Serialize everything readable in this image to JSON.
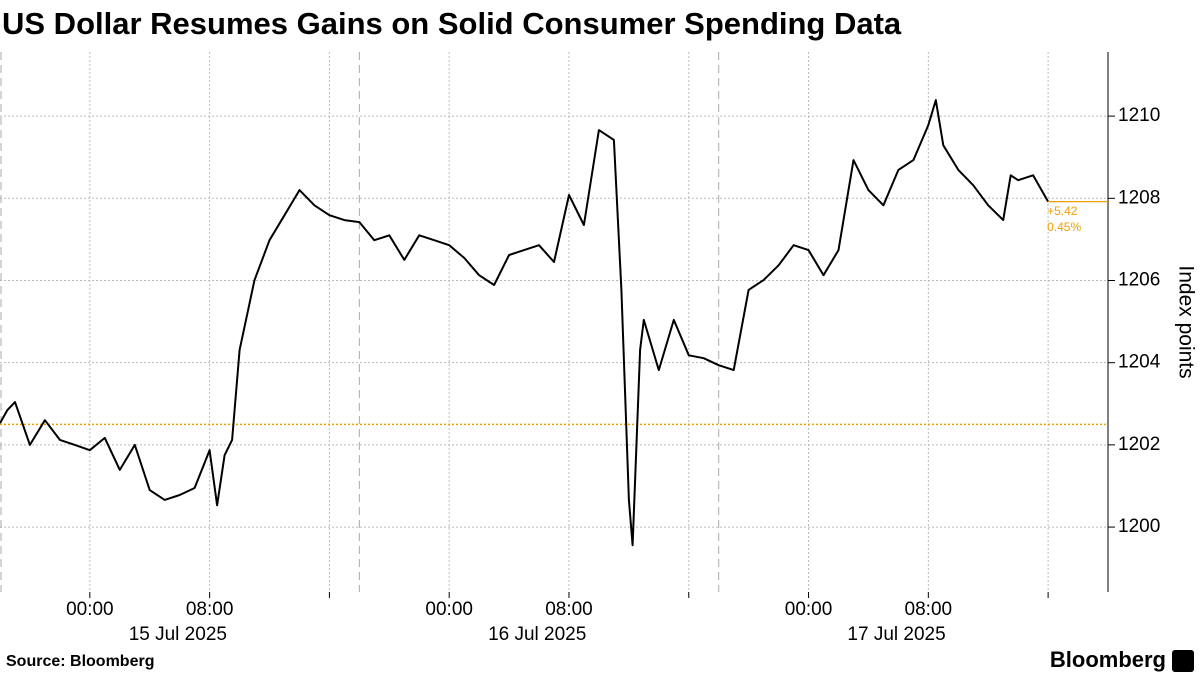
{
  "chart_data": {
    "type": "line",
    "title": "US Dollar Resumes Gains on Solid Consumer Spending Data",
    "y_label": "Index points",
    "source": "Source: Bloomberg",
    "brand": "Bloomberg",
    "color": "#000000",
    "reference_value": 1202.5,
    "reference_color": "#f0a000",
    "annotation": [
      "+5.42",
      "0.45%"
    ],
    "x": [
      "2025-07-14T18:00",
      "2025-07-14T18:30",
      "2025-07-14T19:00",
      "2025-07-14T20:00",
      "2025-07-14T21:00",
      "2025-07-14T22:00",
      "2025-07-14T23:00",
      "2025-07-15T00:00",
      "2025-07-15T01:00",
      "2025-07-15T02:00",
      "2025-07-15T03:00",
      "2025-07-15T04:00",
      "2025-07-15T05:00",
      "2025-07-15T06:00",
      "2025-07-15T07:00",
      "2025-07-15T08:00",
      "2025-07-15T08:30",
      "2025-07-15T09:00",
      "2025-07-15T09:30",
      "2025-07-15T10:00",
      "2025-07-15T11:00",
      "2025-07-15T12:00",
      "2025-07-15T13:00",
      "2025-07-15T14:00",
      "2025-07-15T15:00",
      "2025-07-15T16:00",
      "2025-07-15T17:00",
      "2025-07-15T18:00",
      "2025-07-15T19:00",
      "2025-07-15T20:00",
      "2025-07-15T21:00",
      "2025-07-15T22:00",
      "2025-07-15T23:00",
      "2025-07-16T00:00",
      "2025-07-16T01:00",
      "2025-07-16T02:00",
      "2025-07-16T03:00",
      "2025-07-16T04:00",
      "2025-07-16T05:00",
      "2025-07-16T06:00",
      "2025-07-16T07:00",
      "2025-07-16T08:00",
      "2025-07-16T09:00",
      "2025-07-16T10:00",
      "2025-07-16T11:00",
      "2025-07-16T11:30",
      "2025-07-16T12:00",
      "2025-07-16T12:15",
      "2025-07-16T12:45",
      "2025-07-16T13:00",
      "2025-07-16T14:00",
      "2025-07-16T15:00",
      "2025-07-16T16:00",
      "2025-07-16T17:00",
      "2025-07-16T18:00",
      "2025-07-16T19:00",
      "2025-07-16T20:00",
      "2025-07-16T21:00",
      "2025-07-16T22:00",
      "2025-07-16T23:00",
      "2025-07-17T00:00",
      "2025-07-17T01:00",
      "2025-07-17T02:00",
      "2025-07-17T03:00",
      "2025-07-17T04:00",
      "2025-07-17T05:00",
      "2025-07-17T06:00",
      "2025-07-17T07:00",
      "2025-07-17T08:00",
      "2025-07-17T08:30",
      "2025-07-17T09:00",
      "2025-07-17T10:00",
      "2025-07-17T11:00",
      "2025-07-17T12:00",
      "2025-07-17T13:00",
      "2025-07-17T13:30",
      "2025-07-17T14:00",
      "2025-07-17T15:00",
      "2025-07-17T16:00"
    ],
    "values": [
      1202.53,
      1202.85,
      1203.04,
      1202.0,
      1202.6,
      1202.12,
      1202.0,
      1201.87,
      1202.17,
      1201.39,
      1202.0,
      1200.9,
      1200.66,
      1200.78,
      1200.95,
      1201.87,
      1200.53,
      1201.75,
      1202.12,
      1204.31,
      1206.01,
      1206.98,
      1207.59,
      1208.2,
      1207.83,
      1207.59,
      1207.47,
      1207.42,
      1206.98,
      1207.1,
      1206.5,
      1207.1,
      1206.98,
      1206.86,
      1206.55,
      1206.13,
      1205.89,
      1206.62,
      1206.74,
      1206.86,
      1206.45,
      1208.08,
      1207.35,
      1209.66,
      1209.42,
      1205.77,
      1200.66,
      1199.56,
      1204.31,
      1205.04,
      1203.82,
      1205.04,
      1204.18,
      1204.11,
      1203.94,
      1203.82,
      1205.77,
      1206.01,
      1206.37,
      1206.86,
      1206.74,
      1206.13,
      1206.74,
      1208.93,
      1208.2,
      1207.83,
      1208.69,
      1208.93,
      1209.78,
      1210.39,
      1209.29,
      1208.69,
      1208.32,
      1207.83,
      1207.47,
      1208.56,
      1208.44,
      1208.56,
      1207.92
    ],
    "xlim": [
      "2025-07-14T18:00",
      "2025-07-17T20:00"
    ],
    "xticks": [
      {
        "value": "2025-07-15T00:00",
        "label": "00:00"
      },
      {
        "value": "2025-07-15T08:00",
        "label": "08:00"
      },
      {
        "value": "2025-07-16T00:00",
        "label": "00:00"
      },
      {
        "value": "2025-07-16T08:00",
        "label": "08:00"
      },
      {
        "value": "2025-07-17T00:00",
        "label": "00:00"
      },
      {
        "value": "2025-07-17T08:00",
        "label": "08:00"
      }
    ],
    "xminor": [
      "2025-07-15T16:00",
      "2025-07-16T16:00",
      "2025-07-17T16:00"
    ],
    "session_lines": [
      "2025-07-14T18:00",
      "2025-07-15T18:00",
      "2025-07-16T18:00"
    ],
    "date_labels": [
      "15 Jul 2025",
      "16 Jul 2025",
      "17 Jul 2025"
    ],
    "ylim": [
      1198.42,
      1211.56
    ],
    "yticks": [
      1200,
      1202,
      1204,
      1206,
      1208,
      1210
    ],
    "grid": true
  }
}
